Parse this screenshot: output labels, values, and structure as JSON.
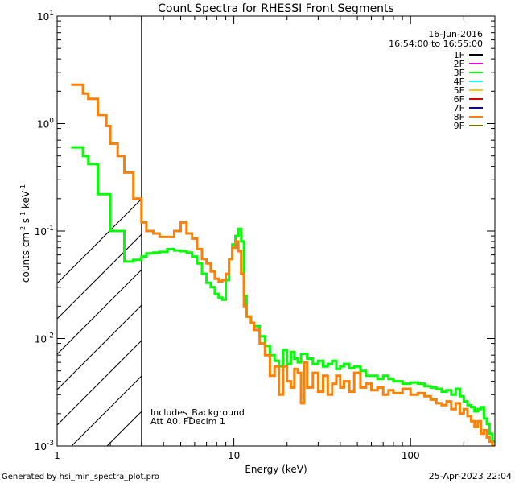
{
  "title": "Count Spectra for RHESSI Front Segments",
  "header": {
    "date": "16-Jun-2016",
    "time_range": "16:54:00 to 16:55:00"
  },
  "footer": {
    "generated_by": "Generated by hsi_min_spectra_plot.pro",
    "timestamp": "25-Apr-2023 22:04"
  },
  "notes": {
    "line1": "Includes_Background",
    "line2": "Att A0, FDecim 1"
  },
  "legend": [
    {
      "label": "1F",
      "color": "#000000"
    },
    {
      "label": "2F",
      "color": "#ff00ff"
    },
    {
      "label": "3F",
      "color": "#00ff00"
    },
    {
      "label": "4F",
      "color": "#00ffff"
    },
    {
      "label": "5F",
      "color": "#ffcc00"
    },
    {
      "label": "6F",
      "color": "#dd0000"
    },
    {
      "label": "7F",
      "color": "#0000cc"
    },
    {
      "label": "8F",
      "color": "#ff7f00"
    },
    {
      "label": "9F",
      "color": "#667700"
    }
  ],
  "chart_data": {
    "type": "line",
    "title": "Count Spectra for RHESSI Front Segments",
    "xlabel": "Energy (keV)",
    "ylabel": "counts cm-2 s-1 keV-1",
    "xscale": "log",
    "yscale": "log",
    "xlim": [
      1,
      300
    ],
    "ylim": [
      0.001,
      10
    ],
    "x_ticks": [
      {
        "value": 1,
        "label": "1"
      },
      {
        "value": 10,
        "label": "10"
      },
      {
        "value": 100,
        "label": "100"
      }
    ],
    "y_ticks": [
      {
        "value": 10,
        "label": "10",
        "exp": "1"
      },
      {
        "value": 1,
        "label": "10",
        "exp": "0"
      },
      {
        "value": 0.1,
        "label": "10",
        "exp": "-1"
      },
      {
        "value": 0.01,
        "label": "10",
        "exp": "-2"
      },
      {
        "value": 0.001,
        "label": "10",
        "exp": "-3"
      }
    ],
    "excluded_region": {
      "x_min": 1,
      "x_max": 3
    },
    "series": [
      {
        "name": "3F",
        "color": "#00ff00",
        "points": [
          [
            1.2,
            0.6
          ],
          [
            1.3,
            0.6
          ],
          [
            1.4,
            0.5
          ],
          [
            1.5,
            0.42
          ],
          [
            1.7,
            0.22
          ],
          [
            1.9,
            0.22
          ],
          [
            2.0,
            0.1
          ],
          [
            2.2,
            0.1
          ],
          [
            2.4,
            0.052
          ],
          [
            2.7,
            0.054
          ],
          [
            3.0,
            0.058
          ],
          [
            3.2,
            0.062
          ],
          [
            3.5,
            0.063
          ],
          [
            3.8,
            0.064
          ],
          [
            4.2,
            0.068
          ],
          [
            4.6,
            0.066
          ],
          [
            5.0,
            0.065
          ],
          [
            5.4,
            0.063
          ],
          [
            5.8,
            0.058
          ],
          [
            6.2,
            0.05
          ],
          [
            6.6,
            0.04
          ],
          [
            7.0,
            0.033
          ],
          [
            7.4,
            0.03
          ],
          [
            7.8,
            0.026
          ],
          [
            8.2,
            0.024
          ],
          [
            8.6,
            0.023
          ],
          [
            9.0,
            0.035
          ],
          [
            9.4,
            0.055
          ],
          [
            9.8,
            0.075
          ],
          [
            10.2,
            0.09
          ],
          [
            10.6,
            0.105
          ],
          [
            11.0,
            0.08
          ],
          [
            11.4,
            0.025
          ],
          [
            11.8,
            0.016
          ],
          [
            12.5,
            0.014
          ],
          [
            13,
            0.013
          ],
          [
            14,
            0.0105
          ],
          [
            15,
            0.0085
          ],
          [
            16,
            0.007
          ],
          [
            17,
            0.0062
          ],
          [
            18,
            0.0055
          ],
          [
            19,
            0.0078
          ],
          [
            20,
            0.0058
          ],
          [
            21,
            0.0075
          ],
          [
            22,
            0.0065
          ],
          [
            23,
            0.006
          ],
          [
            24,
            0.0072
          ],
          [
            26,
            0.0065
          ],
          [
            28,
            0.0058
          ],
          [
            30,
            0.0062
          ],
          [
            32,
            0.0055
          ],
          [
            34,
            0.0058
          ],
          [
            36,
            0.0062
          ],
          [
            38,
            0.0052
          ],
          [
            40,
            0.0055
          ],
          [
            42,
            0.0058
          ],
          [
            45,
            0.0053
          ],
          [
            48,
            0.0055
          ],
          [
            52,
            0.005
          ],
          [
            56,
            0.0045
          ],
          [
            60,
            0.0045
          ],
          [
            65,
            0.0042
          ],
          [
            70,
            0.0045
          ],
          [
            75,
            0.0042
          ],
          [
            80,
            0.004
          ],
          [
            90,
            0.0038
          ],
          [
            100,
            0.0039
          ],
          [
            110,
            0.0038
          ],
          [
            120,
            0.0036
          ],
          [
            130,
            0.0035
          ],
          [
            140,
            0.0034
          ],
          [
            150,
            0.0032
          ],
          [
            160,
            0.0033
          ],
          [
            170,
            0.003
          ],
          [
            180,
            0.0034
          ],
          [
            190,
            0.0029
          ],
          [
            200,
            0.0026
          ],
          [
            210,
            0.0024
          ],
          [
            220,
            0.0023
          ],
          [
            230,
            0.0021
          ],
          [
            240,
            0.0022
          ],
          [
            250,
            0.0023
          ],
          [
            260,
            0.0018
          ],
          [
            270,
            0.0016
          ],
          [
            280,
            0.0013
          ],
          [
            290,
            0.0011
          ]
        ]
      },
      {
        "name": "8F",
        "color": "#ff7f00",
        "points": [
          [
            1.2,
            2.3
          ],
          [
            1.3,
            2.3
          ],
          [
            1.4,
            1.9
          ],
          [
            1.5,
            1.7
          ],
          [
            1.7,
            1.2
          ],
          [
            1.9,
            0.95
          ],
          [
            2.0,
            0.65
          ],
          [
            2.2,
            0.5
          ],
          [
            2.4,
            0.35
          ],
          [
            2.7,
            0.2
          ],
          [
            3.0,
            0.12
          ],
          [
            3.2,
            0.1
          ],
          [
            3.5,
            0.095
          ],
          [
            3.8,
            0.088
          ],
          [
            4.2,
            0.088
          ],
          [
            4.6,
            0.1
          ],
          [
            5.0,
            0.12
          ],
          [
            5.4,
            0.095
          ],
          [
            5.8,
            0.085
          ],
          [
            6.2,
            0.068
          ],
          [
            6.6,
            0.055
          ],
          [
            7.0,
            0.05
          ],
          [
            7.4,
            0.042
          ],
          [
            7.8,
            0.036
          ],
          [
            8.2,
            0.034
          ],
          [
            8.6,
            0.035
          ],
          [
            9.0,
            0.04
          ],
          [
            9.4,
            0.055
          ],
          [
            9.8,
            0.07
          ],
          [
            10.2,
            0.08
          ],
          [
            10.6,
            0.065
          ],
          [
            11.0,
            0.04
          ],
          [
            11.4,
            0.02
          ],
          [
            11.8,
            0.016
          ],
          [
            12.5,
            0.014
          ],
          [
            13,
            0.012
          ],
          [
            14,
            0.009
          ],
          [
            15,
            0.007
          ],
          [
            16,
            0.0045
          ],
          [
            17,
            0.0055
          ],
          [
            18,
            0.003
          ],
          [
            19,
            0.0055
          ],
          [
            20,
            0.004
          ],
          [
            21,
            0.0035
          ],
          [
            22,
            0.0052
          ],
          [
            23,
            0.0048
          ],
          [
            24,
            0.0025
          ],
          [
            25,
            0.006
          ],
          [
            26,
            0.0035
          ],
          [
            28,
            0.0048
          ],
          [
            30,
            0.0032
          ],
          [
            32,
            0.0045
          ],
          [
            34,
            0.003
          ],
          [
            36,
            0.0038
          ],
          [
            38,
            0.0045
          ],
          [
            40,
            0.0035
          ],
          [
            42,
            0.004
          ],
          [
            45,
            0.0032
          ],
          [
            48,
            0.0048
          ],
          [
            52,
            0.0035
          ],
          [
            56,
            0.0038
          ],
          [
            60,
            0.0033
          ],
          [
            65,
            0.0035
          ],
          [
            70,
            0.003
          ],
          [
            75,
            0.0033
          ],
          [
            80,
            0.0031
          ],
          [
            90,
            0.0034
          ],
          [
            100,
            0.003
          ],
          [
            110,
            0.0031
          ],
          [
            120,
            0.0029
          ],
          [
            130,
            0.0027
          ],
          [
            140,
            0.0025
          ],
          [
            150,
            0.0024
          ],
          [
            160,
            0.0026
          ],
          [
            170,
            0.0022
          ],
          [
            180,
            0.0025
          ],
          [
            190,
            0.002
          ],
          [
            200,
            0.0022
          ],
          [
            210,
            0.0019
          ],
          [
            220,
            0.0017
          ],
          [
            230,
            0.0015
          ],
          [
            240,
            0.0017
          ],
          [
            250,
            0.0013
          ],
          [
            260,
            0.0014
          ],
          [
            270,
            0.0012
          ],
          [
            280,
            0.0011
          ],
          [
            290,
            0.001
          ]
        ]
      }
    ]
  }
}
